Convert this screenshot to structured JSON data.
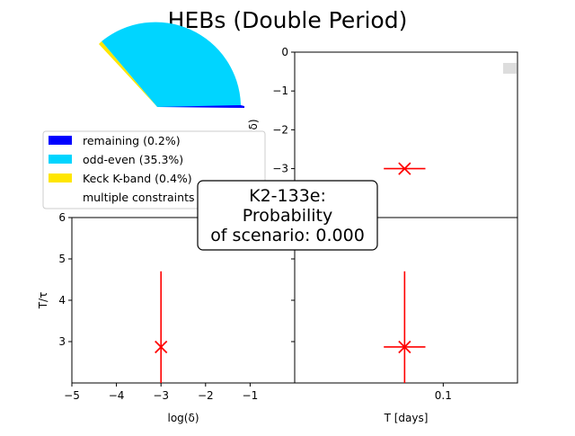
{
  "title": "HEBs (Double Period)",
  "colors": {
    "remaining": "#0000ff",
    "odd_even": "#00d5ff",
    "keck": "#ffe600",
    "marker": "#ff0000",
    "axis": "#000000"
  },
  "legend": {
    "items": [
      {
        "label": "remaining (0.2%)",
        "color": "#0000ff"
      },
      {
        "label": "odd-even (35.3%)",
        "color": "#00d5ff"
      },
      {
        "label": "Keck K-band (0.4%)",
        "color": "#ffe600"
      },
      {
        "label": "multiple constraints",
        "color": "#ffffff"
      }
    ]
  },
  "annotation": {
    "lines": [
      "K2-133e:",
      "Probability",
      "of scenario: 0.000"
    ]
  },
  "chart_data": [
    {
      "type": "pie",
      "slices": [
        {
          "label": "remaining",
          "percent": 0.2,
          "color": "#0000ff"
        },
        {
          "label": "odd-even",
          "percent": 35.3,
          "color": "#00d5ff"
        },
        {
          "label": "Keck K-band",
          "percent": 0.4,
          "color": "#ffe600"
        },
        {
          "label": "multiple constraints",
          "percent": 64.1,
          "color": "#ffffff"
        }
      ]
    },
    {
      "type": "scatter",
      "panel": "top-right",
      "xlabel": "",
      "ylabel": "log(δ)",
      "ylim": [
        -4.26,
        0
      ],
      "yticks": [
        "0",
        "−1",
        "−2",
        "−3"
      ],
      "xlim": [
        0.05,
        0.125
      ],
      "points": [
        {
          "x": 0.087,
          "y": -3.0,
          "xerr": 0.007,
          "yerr": 0
        }
      ]
    },
    {
      "type": "scatter",
      "panel": "bottom-left",
      "xlabel": "log(δ)",
      "ylabel": "T/τ",
      "xlim": [
        -5,
        0
      ],
      "ylim": [
        2.0,
        6.0
      ],
      "xticks": [
        "−5",
        "−4",
        "−3",
        "−2",
        "−1"
      ],
      "yticks": [
        "3",
        "4",
        "5",
        "6"
      ],
      "points": [
        {
          "x": -3.0,
          "y": 2.87,
          "xerr": 0,
          "yerr": 1.83
        }
      ]
    },
    {
      "type": "scatter",
      "panel": "bottom-right",
      "xlabel": "T [days]",
      "ylabel": "",
      "xlim": [
        0.05,
        0.125
      ],
      "ylim": [
        2.0,
        6.0
      ],
      "xticks": [
        "0.1"
      ],
      "points": [
        {
          "x": 0.087,
          "y": 2.87,
          "xerr": 0.007,
          "yerr": 1.83
        }
      ]
    }
  ]
}
